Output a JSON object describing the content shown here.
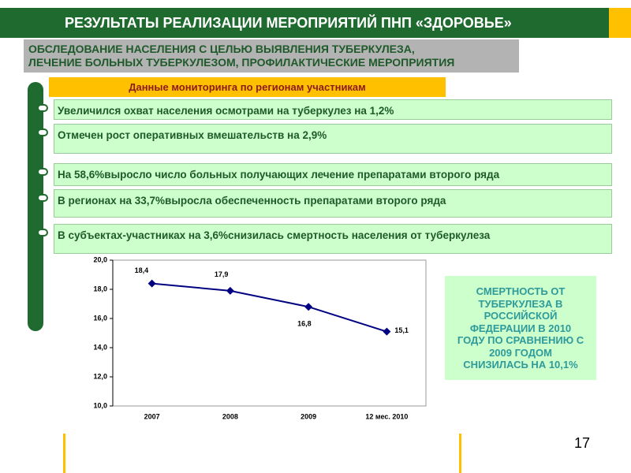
{
  "header": {
    "title": "РЕЗУЛЬТАТЫ РЕАЛИЗАЦИИ МЕРОПРИЯТИЙ ПНП «ЗДОРОВЬЕ»"
  },
  "subtitle": [
    "ОБСЛЕДОВАНИЕ НАСЕЛЕНИЯ С ЦЕЛЬЮ ВЫЯВЛЕНИЯ ТУБЕРКУЛЕЗА,",
    "ЛЕЧЕНИЕ БОЛЬНЫХ ТУБЕРКУЛЕЗОМ, ПРОФИЛАКТИЧЕСКИЕ МЕРОПРИЯТИЯ"
  ],
  "banner": "Данные мониторинга по регионам участникам",
  "bullets": [
    "Увеличился охват населения осмотрами на туберкулез на 1,2%",
    "Отмечен рост оперативных вмешательств на 2,9%",
    "На 58,6%выросло число больных получающих лечение препаратами второго ряда",
    "В регионах на 33,7%выросла обеспеченность препаратами второго ряда",
    "В субъектах-участниках на 3,6%снизилась смертность населения от туберкулеза"
  ],
  "callout": [
    "СМЕРТНОСТЬ ОТ",
    "ТУБЕРКУЛЕЗА В",
    "РОССИЙСКОЙ",
    "ФЕДЕРАЦИИ В 2010",
    "ГОДУ ПО СРАВНЕНИЮ С",
    "2009 ГОДОМ",
    "СНИЗИЛАСЬ НА 10,1%"
  ],
  "page_number": "17",
  "chart_data": {
    "type": "line",
    "categories": [
      "2007",
      "2008",
      "2009",
      "12 мес. 2010"
    ],
    "series": [
      {
        "color": "#000080",
        "values": [
          18.4,
          17.9,
          16.8,
          15.1
        ],
        "value_labels": [
          "18,4",
          "17,9",
          "16,8",
          "15,1"
        ]
      }
    ],
    "ylim": [
      10,
      20
    ],
    "yticks": [
      {
        "value": 10,
        "label": "10,0"
      },
      {
        "value": 12,
        "label": "12,0"
      },
      {
        "value": 14,
        "label": "14,0"
      },
      {
        "value": 16,
        "label": "16,0"
      },
      {
        "value": 18,
        "label": "18,0"
      },
      {
        "value": 20,
        "label": "20,0"
      }
    ]
  }
}
